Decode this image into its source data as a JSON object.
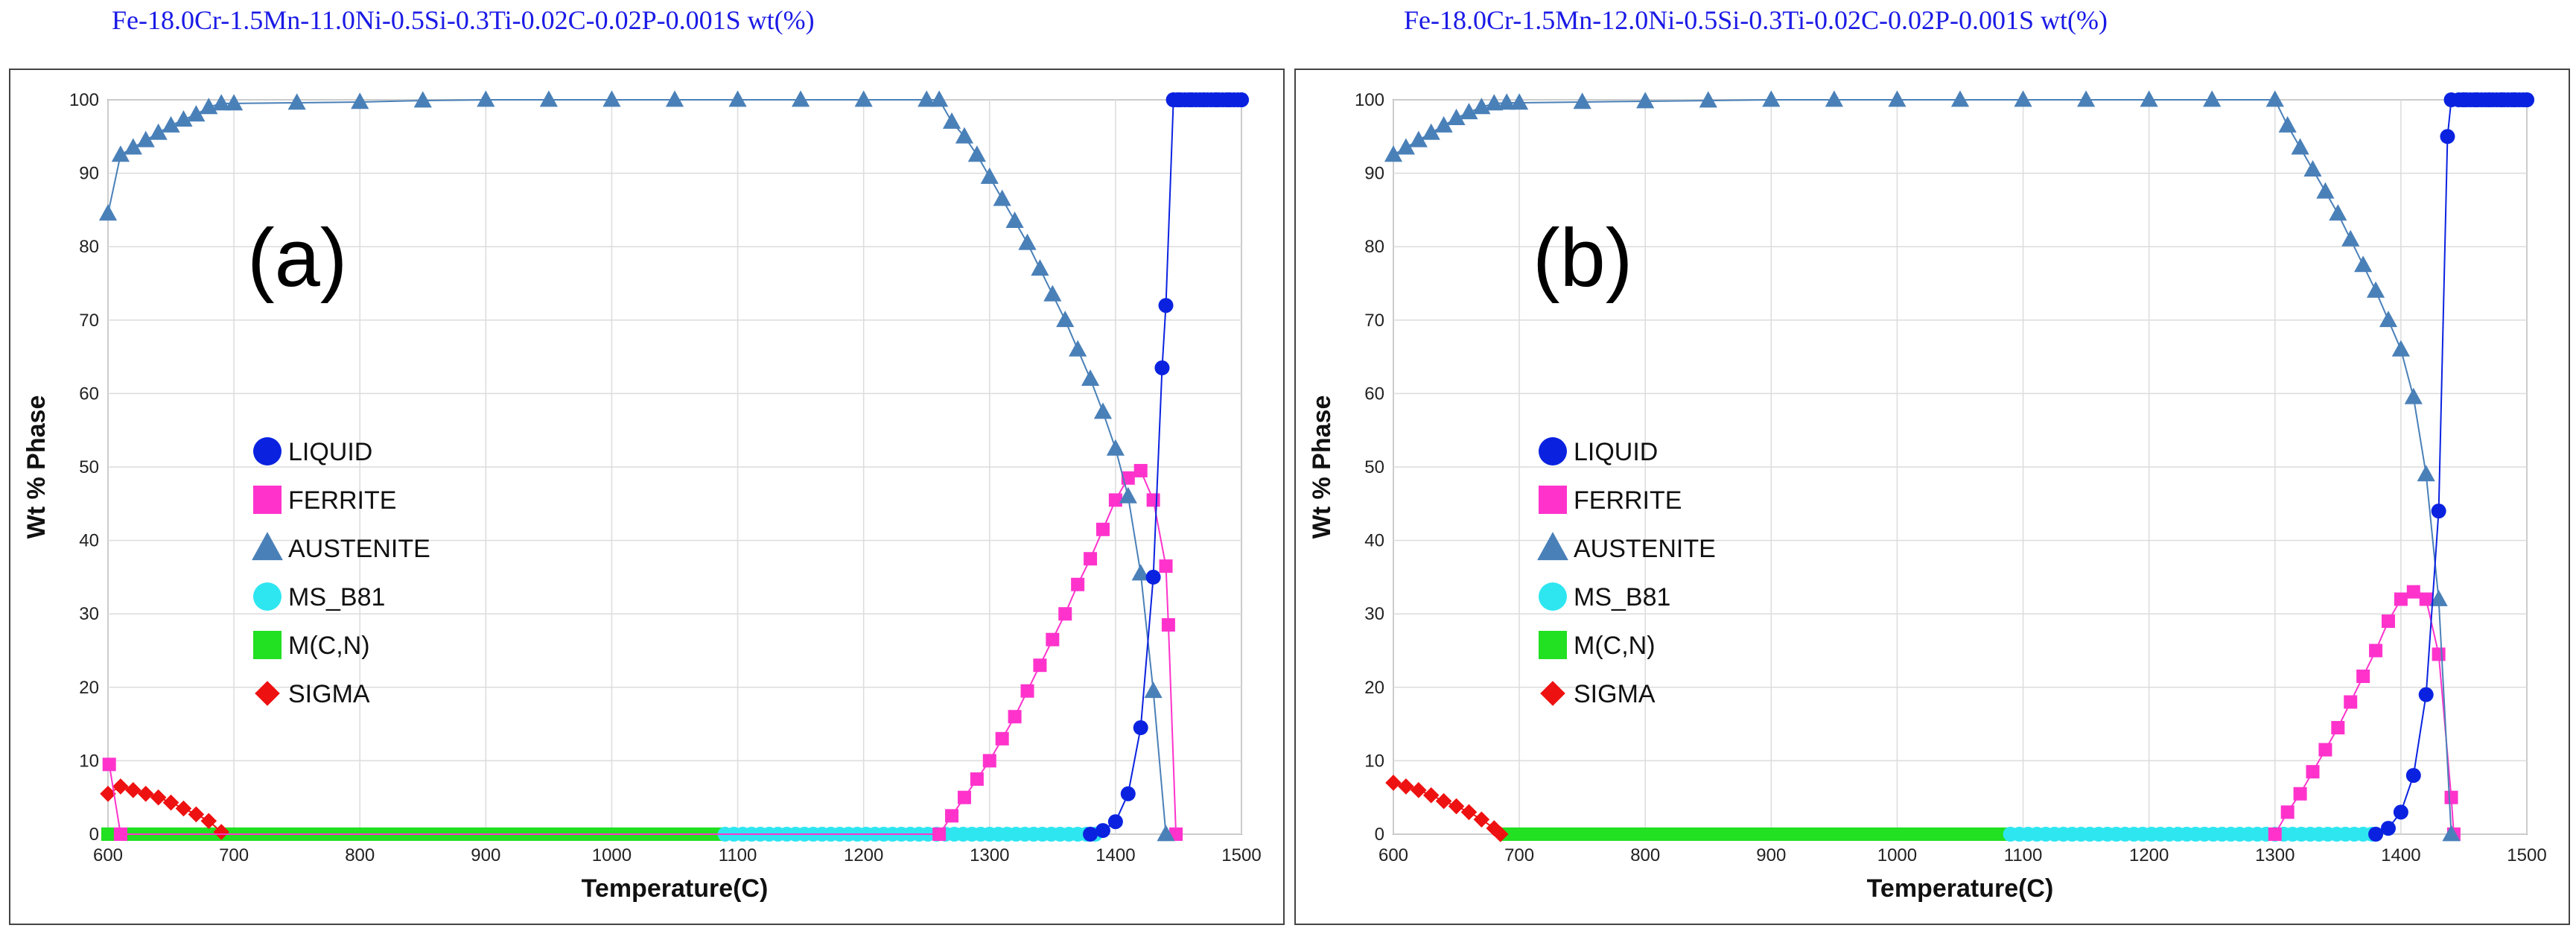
{
  "chart_data": [
    {
      "type": "line",
      "title": "Fe-18.0Cr-1.5Mn-11.0Ni-0.5Si-0.3Ti-0.02C-0.02P-0.001S wt(%)",
      "panel_label": "(a)",
      "xlabel": "Temperature(C)",
      "ylabel": "Wt % Phase",
      "xlim": [
        600,
        1500
      ],
      "ylim": [
        0,
        100
      ],
      "xticks": [
        "600",
        "700",
        "800",
        "900",
        "1000",
        "1100",
        "1200",
        "1300",
        "1400",
        "1500"
      ],
      "yticks": [
        "0",
        "10",
        "20",
        "30",
        "40",
        "50",
        "60",
        "70",
        "80",
        "90",
        "100"
      ],
      "grid": true,
      "legend_position": "center-left",
      "series": [
        {
          "name": "LIQUID",
          "color": "#0a22e0",
          "marker": "circle",
          "points": [
            [
              1380,
              0
            ],
            [
              1390,
              0.5
            ],
            [
              1400,
              1.7
            ],
            [
              1410,
              5.5
            ],
            [
              1420,
              14.5
            ],
            [
              1430,
              35
            ],
            [
              1437,
              63.5
            ],
            [
              1440,
              72
            ],
            [
              1446,
              100
            ],
            [
              1450,
              100
            ],
            [
              1460,
              100
            ],
            [
              1470,
              100
            ],
            [
              1480,
              100
            ],
            [
              1490,
              100
            ],
            [
              1500,
              100
            ]
          ]
        },
        {
          "name": "FERRITE",
          "color": "#ff33cc",
          "marker": "square",
          "points": [
            [
              601,
              9.5
            ],
            [
              610,
              0
            ],
            [
              1260,
              0
            ],
            [
              1270,
              2.5
            ],
            [
              1280,
              5
            ],
            [
              1290,
              7.5
            ],
            [
              1300,
              10
            ],
            [
              1310,
              13
            ],
            [
              1320,
              16
            ],
            [
              1330,
              19.5
            ],
            [
              1340,
              23
            ],
            [
              1350,
              26.5
            ],
            [
              1360,
              30
            ],
            [
              1370,
              34
            ],
            [
              1380,
              37.5
            ],
            [
              1390,
              41.5
            ],
            [
              1400,
              45.5
            ],
            [
              1410,
              48.5
            ],
            [
              1420,
              49.5
            ],
            [
              1430,
              45.5
            ],
            [
              1440,
              36.5
            ],
            [
              1442,
              28.5
            ],
            [
              1448,
              0
            ]
          ]
        },
        {
          "name": "AUSTENITE",
          "color": "#4a80b8",
          "marker": "triangle",
          "points": [
            [
              600,
              84.5
            ],
            [
              610,
              92.5
            ],
            [
              620,
              93.5
            ],
            [
              630,
              94.5
            ],
            [
              640,
              95.5
            ],
            [
              650,
              96.5
            ],
            [
              660,
              97.3
            ],
            [
              670,
              98
            ],
            [
              680,
              99
            ],
            [
              690,
              99.5
            ],
            [
              700,
              99.5
            ],
            [
              750,
              99.6
            ],
            [
              800,
              99.7
            ],
            [
              850,
              99.9
            ],
            [
              900,
              100
            ],
            [
              950,
              100
            ],
            [
              1000,
              100
            ],
            [
              1050,
              100
            ],
            [
              1100,
              100
            ],
            [
              1150,
              100
            ],
            [
              1200,
              100
            ],
            [
              1250,
              100
            ],
            [
              1260,
              100
            ],
            [
              1270,
              97
            ],
            [
              1280,
              95
            ],
            [
              1290,
              92.5
            ],
            [
              1300,
              89.5
            ],
            [
              1310,
              86.5
            ],
            [
              1320,
              83.5
            ],
            [
              1330,
              80.5
            ],
            [
              1340,
              77
            ],
            [
              1350,
              73.5
            ],
            [
              1360,
              70
            ],
            [
              1370,
              66
            ],
            [
              1380,
              62
            ],
            [
              1390,
              57.5
            ],
            [
              1400,
              52.5
            ],
            [
              1410,
              46
            ],
            [
              1420,
              35.5
            ],
            [
              1430,
              19.5
            ],
            [
              1440,
              0
            ]
          ]
        },
        {
          "name": "MS_B81",
          "color": "#2ee6f0",
          "marker": "circle",
          "points": [
            [
              1090,
              0
            ],
            [
              1100,
              0
            ],
            [
              1150,
              0
            ],
            [
              1200,
              0
            ],
            [
              1250,
              0
            ],
            [
              1300,
              0
            ],
            [
              1350,
              0
            ],
            [
              1385,
              0
            ]
          ]
        },
        {
          "name": "M(C,N)",
          "color": "#22e022",
          "marker": "square",
          "points": [
            [
              600,
              0
            ],
            [
              700,
              0
            ],
            [
              800,
              0
            ],
            [
              900,
              0
            ],
            [
              1000,
              0
            ],
            [
              1085,
              0
            ]
          ]
        },
        {
          "name": "SIGMA",
          "color": "#ee1111",
          "marker": "diamond",
          "points": [
            [
              600,
              5.5
            ],
            [
              610,
              6.5
            ],
            [
              620,
              6
            ],
            [
              630,
              5.5
            ],
            [
              640,
              5
            ],
            [
              650,
              4.3
            ],
            [
              660,
              3.5
            ],
            [
              670,
              2.7
            ],
            [
              680,
              1.8
            ],
            [
              690,
              0.3
            ]
          ]
        }
      ]
    },
    {
      "type": "line",
      "title": "Fe-18.0Cr-1.5Mn-12.0Ni-0.5Si-0.3Ti-0.02C-0.02P-0.001S wt(%)",
      "panel_label": "(b)",
      "xlabel": "Temperature(C)",
      "ylabel": "Wt % Phase",
      "xlim": [
        600,
        1500
      ],
      "ylim": [
        0,
        100
      ],
      "xticks": [
        "600",
        "700",
        "800",
        "900",
        "1000",
        "1100",
        "1200",
        "1300",
        "1400",
        "1500"
      ],
      "yticks": [
        "0",
        "10",
        "20",
        "30",
        "40",
        "50",
        "60",
        "70",
        "80",
        "90",
        "100"
      ],
      "grid": true,
      "legend_position": "center-left",
      "series": [
        {
          "name": "LIQUID",
          "color": "#0a22e0",
          "marker": "circle",
          "points": [
            [
              1380,
              0
            ],
            [
              1390,
              0.8
            ],
            [
              1400,
              3
            ],
            [
              1410,
              8
            ],
            [
              1420,
              19
            ],
            [
              1430,
              44
            ],
            [
              1437,
              95
            ],
            [
              1440,
              100
            ],
            [
              1450,
              100
            ],
            [
              1460,
              100
            ],
            [
              1470,
              100
            ],
            [
              1480,
              100
            ],
            [
              1490,
              100
            ],
            [
              1500,
              100
            ]
          ]
        },
        {
          "name": "FERRITE",
          "color": "#ff33cc",
          "marker": "square",
          "points": [
            [
              1300,
              0
            ],
            [
              1310,
              3
            ],
            [
              1320,
              5.5
            ],
            [
              1330,
              8.5
            ],
            [
              1340,
              11.5
            ],
            [
              1350,
              14.5
            ],
            [
              1360,
              18
            ],
            [
              1370,
              21.5
            ],
            [
              1380,
              25
            ],
            [
              1390,
              29
            ],
            [
              1400,
              32
            ],
            [
              1410,
              33
            ],
            [
              1420,
              32
            ],
            [
              1430,
              24.5
            ],
            [
              1440,
              5
            ],
            [
              1442,
              0
            ]
          ]
        },
        {
          "name": "AUSTENITE",
          "color": "#4a80b8",
          "marker": "triangle",
          "points": [
            [
              600,
              92.5
            ],
            [
              610,
              93.5
            ],
            [
              620,
              94.5
            ],
            [
              630,
              95.5
            ],
            [
              640,
              96.5
            ],
            [
              650,
              97.5
            ],
            [
              660,
              98.3
            ],
            [
              670,
              99
            ],
            [
              680,
              99.5
            ],
            [
              690,
              99.6
            ],
            [
              700,
              99.6
            ],
            [
              750,
              99.7
            ],
            [
              800,
              99.8
            ],
            [
              850,
              99.9
            ],
            [
              900,
              100
            ],
            [
              950,
              100
            ],
            [
              1000,
              100
            ],
            [
              1050,
              100
            ],
            [
              1100,
              100
            ],
            [
              1150,
              100
            ],
            [
              1200,
              100
            ],
            [
              1250,
              100
            ],
            [
              1300,
              100
            ],
            [
              1310,
              96.5
            ],
            [
              1320,
              93.5
            ],
            [
              1330,
              90.5
            ],
            [
              1340,
              87.5
            ],
            [
              1350,
              84.5
            ],
            [
              1360,
              81
            ],
            [
              1370,
              77.5
            ],
            [
              1380,
              74
            ],
            [
              1390,
              70
            ],
            [
              1400,
              66
            ],
            [
              1410,
              59.5
            ],
            [
              1420,
              49
            ],
            [
              1430,
              32
            ],
            [
              1440,
              0
            ]
          ]
        },
        {
          "name": "MS_B81",
          "color": "#2ee6f0",
          "marker": "circle",
          "points": [
            [
              1090,
              0
            ],
            [
              1100,
              0
            ],
            [
              1150,
              0
            ],
            [
              1200,
              0
            ],
            [
              1250,
              0
            ],
            [
              1300,
              0
            ],
            [
              1350,
              0
            ],
            [
              1380,
              0
            ]
          ]
        },
        {
          "name": "M(C,N)",
          "color": "#22e022",
          "marker": "square",
          "points": [
            [
              690,
              0
            ],
            [
              700,
              0
            ],
            [
              800,
              0
            ],
            [
              900,
              0
            ],
            [
              1000,
              0
            ],
            [
              1085,
              0
            ]
          ]
        },
        {
          "name": "SIGMA",
          "color": "#ee1111",
          "marker": "diamond",
          "points": [
            [
              600,
              7
            ],
            [
              610,
              6.5
            ],
            [
              620,
              6
            ],
            [
              630,
              5.3
            ],
            [
              640,
              4.5
            ],
            [
              650,
              3.8
            ],
            [
              660,
              3
            ],
            [
              670,
              2
            ],
            [
              680,
              0.8
            ],
            [
              685,
              0
            ]
          ]
        }
      ]
    }
  ]
}
